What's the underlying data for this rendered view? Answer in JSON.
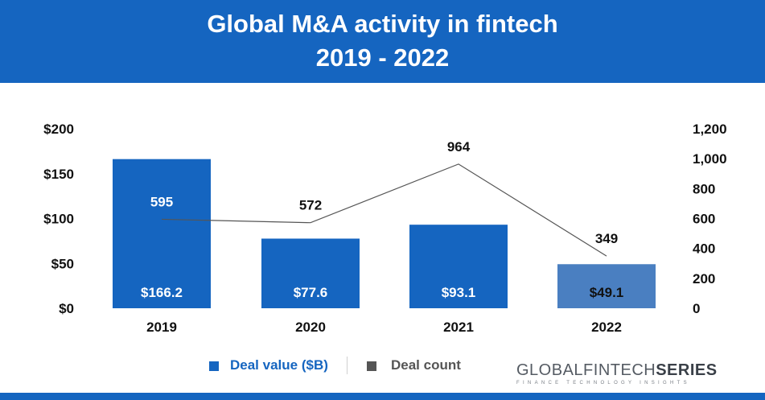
{
  "header": {
    "title_line1": "Global M&A activity in fintech",
    "title_line2": "2019 - 2022"
  },
  "chart_data": {
    "type": "bar",
    "title": "Global M&A activity in fintech 2019 - 2022",
    "categories": [
      "2019",
      "2020",
      "2021",
      "2022"
    ],
    "series": [
      {
        "name": "Deal value ($B)",
        "type": "bar",
        "axis": "left",
        "values": [
          166.2,
          77.6,
          93.1,
          49.1
        ],
        "labels": [
          "$166.2",
          "$77.6",
          "$93.1",
          "$49.1"
        ],
        "colors": [
          "#1565c0",
          "#1565c0",
          "#1565c0",
          "#4a7fc1"
        ]
      },
      {
        "name": "Deal count",
        "type": "line",
        "axis": "right",
        "values": [
          595,
          572,
          964,
          349
        ],
        "labels": [
          "595",
          "572",
          "964",
          "349"
        ],
        "color": "#555555"
      }
    ],
    "y_left": {
      "ylim": [
        0,
        200
      ],
      "ticks": [
        "$0",
        "$50",
        "$100",
        "$150",
        "$200"
      ]
    },
    "y_right": {
      "ylim": [
        0,
        1200
      ],
      "ticks": [
        "0",
        "200",
        "400",
        "600",
        "800",
        "1,000",
        "1,200"
      ]
    },
    "grid": false,
    "legend_position": "bottom"
  },
  "legend": {
    "items": [
      {
        "label": "Deal value ($B)",
        "color": "#1565c0"
      },
      {
        "label": "Deal count",
        "color": "#555555"
      }
    ]
  },
  "brand": {
    "prefix": "GLOBALFINTECH",
    "suffix": "SERIES",
    "tagline": "FINANCE TECHNOLOGY INSIGHTS"
  }
}
